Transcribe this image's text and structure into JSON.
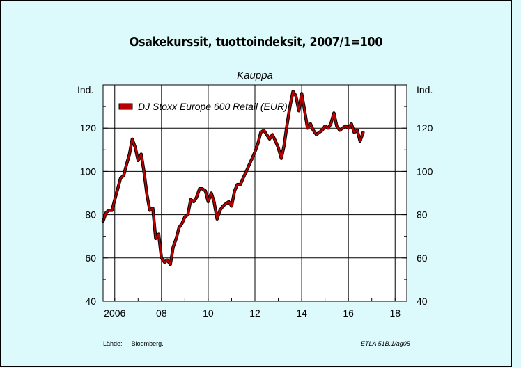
{
  "chart_data": {
    "type": "line",
    "title": "Osakekurssit, tuottoindeksit, 2007/1=100",
    "subtitle": "Kauppa",
    "ylabel_left": "Ind.",
    "ylabel_right": "Ind.",
    "ylim": [
      40,
      140
    ],
    "yticks": [
      40,
      60,
      80,
      100,
      120
    ],
    "xlim": [
      2005.5,
      2018.5
    ],
    "xticks": [
      {
        "value": 2006,
        "label": "2006"
      },
      {
        "value": 2008,
        "label": "08"
      },
      {
        "value": 2010,
        "label": "10"
      },
      {
        "value": 2012,
        "label": "12"
      },
      {
        "value": 2014,
        "label": "14"
      },
      {
        "value": 2016,
        "label": "16"
      },
      {
        "value": 2018,
        "label": "18"
      }
    ],
    "grid": true,
    "legend_position": "top-left",
    "series": [
      {
        "name": "DJ Stoxx Europe 600 Retail (EUR)",
        "color": "#bb0000",
        "points": [
          [
            2005.5,
            77
          ],
          [
            2005.63,
            81
          ],
          [
            2005.75,
            82
          ],
          [
            2005.88,
            82
          ],
          [
            2006.0,
            87
          ],
          [
            2006.13,
            92
          ],
          [
            2006.25,
            97
          ],
          [
            2006.38,
            98
          ],
          [
            2006.5,
            103
          ],
          [
            2006.63,
            108
          ],
          [
            2006.75,
            115
          ],
          [
            2006.88,
            111
          ],
          [
            2007.0,
            105
          ],
          [
            2007.13,
            108
          ],
          [
            2007.25,
            100
          ],
          [
            2007.38,
            89
          ],
          [
            2007.5,
            82
          ],
          [
            2007.63,
            83
          ],
          [
            2007.75,
            69
          ],
          [
            2007.88,
            71
          ],
          [
            2008.0,
            60
          ],
          [
            2008.13,
            58
          ],
          [
            2008.25,
            59
          ],
          [
            2008.38,
            57
          ],
          [
            2008.5,
            65
          ],
          [
            2008.63,
            69
          ],
          [
            2008.75,
            74
          ],
          [
            2008.88,
            76
          ],
          [
            2009.0,
            79
          ],
          [
            2009.13,
            80
          ],
          [
            2009.25,
            87
          ],
          [
            2009.38,
            86
          ],
          [
            2009.5,
            88
          ],
          [
            2009.63,
            92
          ],
          [
            2009.75,
            92
          ],
          [
            2009.88,
            91
          ],
          [
            2010.0,
            86
          ],
          [
            2010.13,
            90
          ],
          [
            2010.25,
            86
          ],
          [
            2010.38,
            78
          ],
          [
            2010.5,
            82
          ],
          [
            2010.63,
            84
          ],
          [
            2010.75,
            85
          ],
          [
            2010.88,
            86
          ],
          [
            2011.0,
            84
          ],
          [
            2011.13,
            91
          ],
          [
            2011.25,
            94
          ],
          [
            2011.38,
            94
          ],
          [
            2011.5,
            97
          ],
          [
            2011.63,
            100
          ],
          [
            2011.75,
            103
          ],
          [
            2011.88,
            106
          ],
          [
            2012.0,
            109
          ],
          [
            2012.13,
            113
          ],
          [
            2012.25,
            118
          ],
          [
            2012.38,
            119
          ],
          [
            2012.5,
            117
          ],
          [
            2012.63,
            115
          ],
          [
            2012.75,
            117
          ],
          [
            2012.88,
            114
          ],
          [
            2013.0,
            111
          ],
          [
            2013.13,
            106
          ],
          [
            2013.25,
            112
          ],
          [
            2013.38,
            122
          ],
          [
            2013.5,
            130
          ],
          [
            2013.63,
            137
          ],
          [
            2013.75,
            135
          ],
          [
            2013.88,
            128
          ],
          [
            2014.0,
            136
          ],
          [
            2014.13,
            128
          ],
          [
            2014.25,
            120
          ],
          [
            2014.38,
            122
          ],
          [
            2014.5,
            119
          ],
          [
            2014.63,
            117
          ],
          [
            2014.75,
            118
          ],
          [
            2014.88,
            119
          ],
          [
            2015.0,
            121
          ],
          [
            2015.13,
            120
          ],
          [
            2015.25,
            122
          ],
          [
            2015.38,
            127
          ],
          [
            2015.5,
            121
          ],
          [
            2015.63,
            119
          ],
          [
            2015.75,
            120
          ],
          [
            2015.88,
            121
          ],
          [
            2016.0,
            120
          ],
          [
            2016.13,
            122
          ],
          [
            2016.25,
            118
          ],
          [
            2016.38,
            119
          ],
          [
            2016.5,
            114
          ],
          [
            2016.63,
            118
          ]
        ]
      }
    ]
  },
  "source": {
    "label": "Lähde:",
    "value": "Bloomberg."
  },
  "code": "ETLA 51B.1/ag05",
  "colors": {
    "background": "#dcfafc",
    "plot_background": "#ffffff",
    "series": "#bb0000"
  }
}
